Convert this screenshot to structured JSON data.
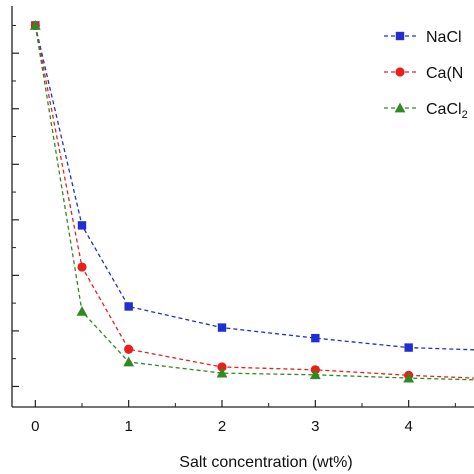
{
  "chart_data": {
    "type": "line",
    "xlabel": "Salt concentration (wt%)",
    "ylabel": "",
    "xlim": [
      -0.25,
      4.7
    ],
    "ylim": [
      -0.37,
      6.85
    ],
    "xticks": [
      0,
      1,
      2,
      3,
      4
    ],
    "xtick_labels": [
      "0",
      "1",
      "2",
      "3",
      "4"
    ],
    "grid": false,
    "legend_position": "top-right",
    "series": [
      {
        "name": "NaCl",
        "color": "#1f2fd1",
        "marker": "square",
        "line_style": "dashed",
        "x": [
          0,
          0.5,
          1,
          2,
          3,
          4,
          4.7
        ],
        "y": [
          6.5,
          2.9,
          1.44,
          1.06,
          0.87,
          0.7,
          0.66
        ]
      },
      {
        "name": "Ca(N",
        "color": "#e8201c",
        "marker": "circle",
        "line_style": "dashed",
        "x": [
          0,
          0.5,
          1,
          2,
          3,
          4,
          4.7
        ],
        "y": [
          6.5,
          2.15,
          0.67,
          0.35,
          0.3,
          0.2,
          0.15
        ]
      },
      {
        "name": "CaCl",
        "color": "#2f8a1f",
        "marker": "triangle",
        "line_style": "dashed",
        "x": [
          0,
          0.5,
          1,
          2,
          3,
          4,
          4.7
        ],
        "y": [
          6.5,
          1.35,
          0.44,
          0.24,
          0.21,
          0.15,
          0.12
        ]
      }
    ]
  }
}
